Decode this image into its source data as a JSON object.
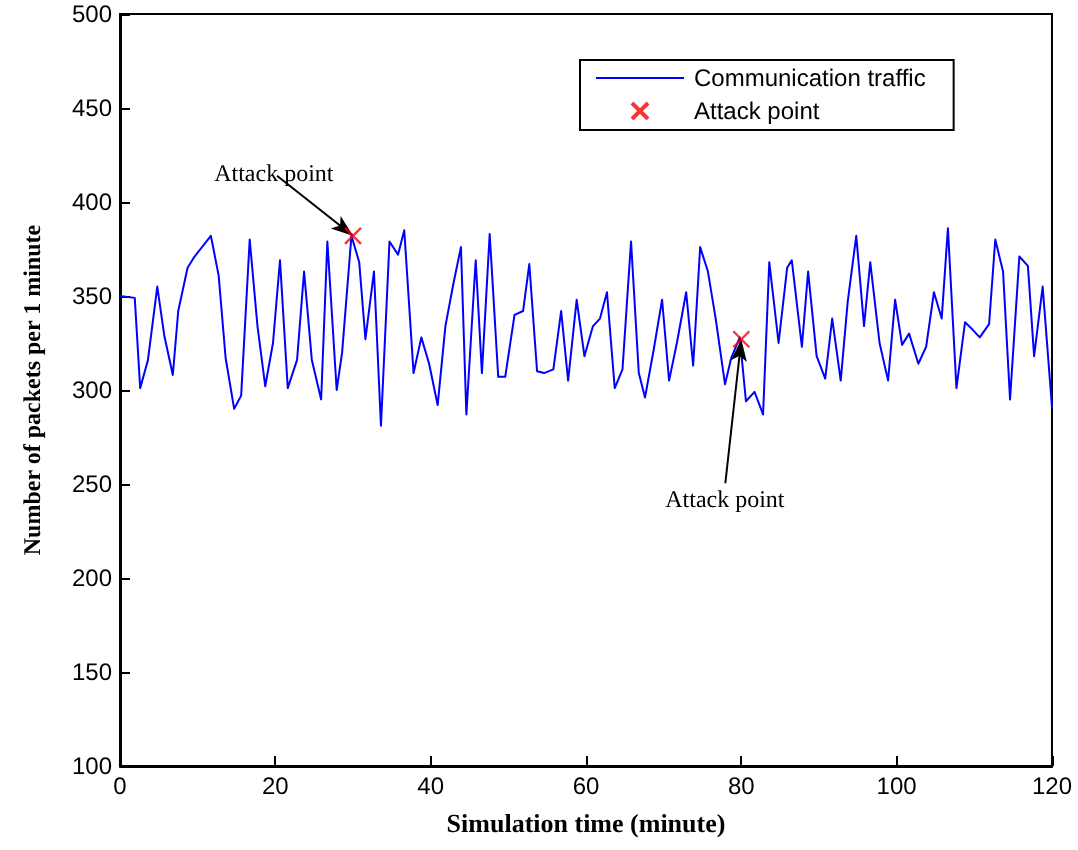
{
  "chart_data": {
    "type": "line",
    "xlabel": "Simulation time (minute)",
    "ylabel": "Number of packets per 1 minute",
    "xlim": [
      0,
      120
    ],
    "xticks": [
      0,
      20,
      40,
      60,
      80,
      100,
      120
    ],
    "ylim": [
      100,
      500
    ],
    "yticks": [
      100,
      150,
      200,
      250,
      300,
      350,
      400,
      450,
      500
    ],
    "grid": false,
    "legend": "top right",
    "annotations": [
      {
        "text": "Attack point",
        "x": 30,
        "y": 382
      },
      {
        "text": "Attack point",
        "x": 80,
        "y": 327
      }
    ],
    "series": [
      {
        "name": "Communication traffic",
        "type": "line",
        "color": "#0000ff",
        "marker": "none",
        "line_style": "solid",
        "x": [
          0,
          1.9,
          2.6,
          3.6,
          4.8,
          5.7,
          6.8,
          7.5,
          8.7,
          9.6,
          11.7,
          12.7,
          13.6,
          14.7,
          15.6,
          16.7,
          17.7,
          18.7,
          19.7,
          20.6,
          21.6,
          22.8,
          23.7,
          24.7,
          25.9,
          26.7,
          27.9,
          28.6,
          29.8,
          30.8,
          31.6,
          32.7,
          33.6,
          34.7,
          35.8,
          36.6,
          37.8,
          38.8,
          39.8,
          40.9,
          41.9,
          42.9,
          43.9,
          44.6,
          45.8,
          46.6,
          47.6,
          48.7,
          49.6,
          50.8,
          51.9,
          52.7,
          53.7,
          54.6,
          55.8,
          56.8,
          57.7,
          58.8,
          59.8,
          60.9,
          61.8,
          62.7,
          63.7,
          64.7,
          65.8,
          66.8,
          67.6,
          68.7,
          69.8,
          70.7,
          71.7,
          72.9,
          73.8,
          74.7,
          75.7,
          76.7,
          77.9,
          78.7,
          79.8,
          80.6,
          81.7,
          82.8,
          83.6,
          84.8,
          85.9,
          86.5,
          87.8,
          88.6,
          89.7,
          90.8,
          91.7,
          92.8,
          93.7,
          94.8,
          95.8,
          96.6,
          97.8,
          98.9,
          99.8,
          100.7,
          101.6,
          102.8,
          103.8,
          104.8,
          105.8,
          106.6,
          107.7,
          108.8,
          109.8,
          110.7,
          111.9,
          112.7,
          113.7,
          114.6,
          115.8,
          116.9,
          117.7,
          118.8,
          120
        ],
        "values": [
          350,
          349,
          301,
          316,
          355,
          329,
          308,
          342,
          365,
          371,
          382,
          361,
          317,
          290,
          297,
          380,
          334,
          302,
          325,
          369,
          301,
          316,
          363,
          316,
          295,
          379,
          300,
          320,
          382,
          368,
          327,
          363,
          281,
          379,
          372,
          385,
          309,
          328,
          314,
          292,
          334,
          356,
          376,
          287,
          369,
          309,
          383,
          307,
          307,
          340,
          342,
          367,
          310,
          309,
          311,
          342,
          305,
          348,
          318,
          334,
          338,
          352,
          301,
          311,
          379,
          309,
          296,
          321,
          348,
          305,
          325,
          352,
          313,
          376,
          363,
          338,
          303,
          317,
          328,
          294,
          299,
          287,
          368,
          325,
          365,
          369,
          323,
          363,
          318,
          306,
          338,
          305,
          347,
          382,
          334,
          368,
          325,
          305,
          348,
          324,
          330,
          314,
          323,
          352,
          338,
          386,
          301,
          336,
          332,
          328,
          335,
          380,
          363,
          295,
          371,
          366,
          318,
          355,
          291
        ]
      },
      {
        "name": "Attack point",
        "type": "scatter",
        "color": "#ff0000",
        "marker": "cross",
        "x": [
          30,
          80
        ],
        "values": [
          382,
          327
        ]
      }
    ]
  }
}
